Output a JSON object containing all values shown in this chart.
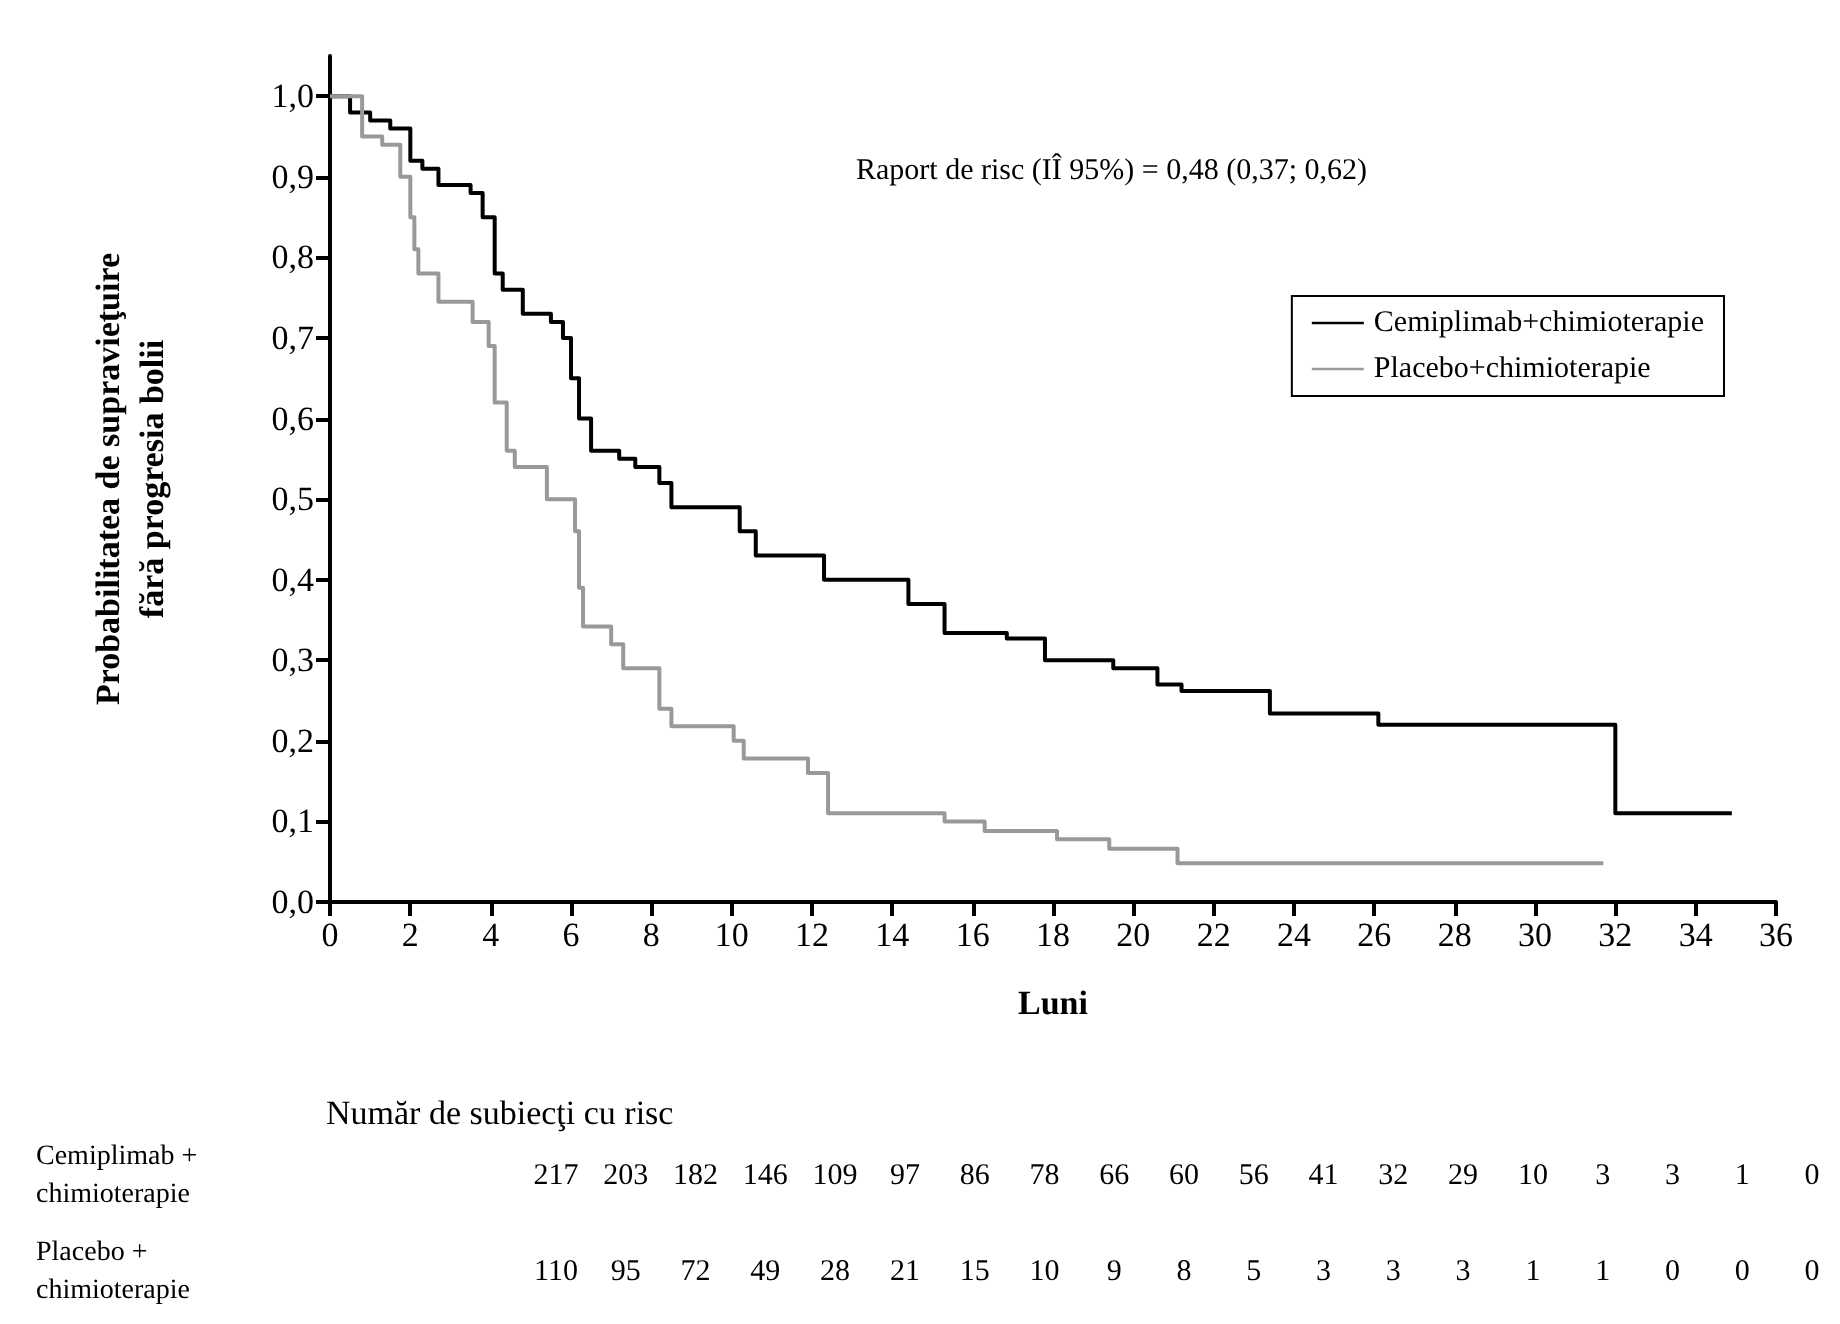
{
  "chart_data": {
    "type": "step",
    "xlabel": "Luni",
    "ylabel": "Probabilitatea de supravieţuire\nfără progresia bolii",
    "xlim": [
      0,
      36
    ],
    "ylim": [
      0,
      1.05
    ],
    "xticks": [
      0,
      2,
      4,
      6,
      8,
      10,
      12,
      14,
      16,
      18,
      20,
      22,
      24,
      26,
      28,
      30,
      32,
      34,
      36
    ],
    "yticks": [
      {
        "value": 0,
        "label": "0,0"
      },
      {
        "value": 0.1,
        "label": "0,1"
      },
      {
        "value": 0.2,
        "label": "0,2"
      },
      {
        "value": 0.3,
        "label": "0,3"
      },
      {
        "value": 0.4,
        "label": "0,4"
      },
      {
        "value": 0.5,
        "label": "0,5"
      },
      {
        "value": 0.6,
        "label": "0,6"
      },
      {
        "value": 0.7,
        "label": "0,7"
      },
      {
        "value": 0.8,
        "label": "0,8"
      },
      {
        "value": 0.9,
        "label": "0,9"
      },
      {
        "value": 1,
        "label": "1,0"
      }
    ],
    "grid": false,
    "legend": "top right",
    "series": [
      {
        "name": "Cemiplimab+chimioterapie",
        "color": "#000000",
        "x": [
          0,
          0.5,
          1,
          1.5,
          2,
          2.3,
          2.7,
          3.5,
          3.8,
          4.1,
          4.3,
          4.8,
          5.5,
          5.8,
          6,
          6.2,
          6.5,
          7.2,
          7.6,
          8.2,
          8.5,
          10.2,
          10.6,
          12.3,
          14.4,
          15.3,
          16.85,
          17.8,
          19.5,
          20.6,
          21.2,
          23.4,
          26.1,
          32,
          34.9
        ],
        "values": [
          1,
          0.98,
          0.97,
          0.96,
          0.92,
          0.91,
          0.89,
          0.88,
          0.85,
          0.78,
          0.76,
          0.73,
          0.72,
          0.7,
          0.65,
          0.6,
          0.56,
          0.55,
          0.54,
          0.52,
          0.49,
          0.46,
          0.43,
          0.4,
          0.37,
          0.334,
          0.327,
          0.3,
          0.29,
          0.27,
          0.262,
          0.234,
          0.22,
          0.11,
          0.11
        ]
      },
      {
        "name": "Placebo+chimioterapie",
        "color": "#999999",
        "x": [
          0,
          0.8,
          1.3,
          1.75,
          2,
          2.1,
          2.2,
          2.7,
          3.55,
          3.95,
          4.1,
          4.4,
          4.6,
          5.4,
          6.1,
          6.2,
          6.3,
          7,
          7.3,
          8.2,
          8.5,
          10.05,
          10.3,
          11.9,
          12.4,
          15.3,
          16.3,
          18.1,
          19.4,
          21.1,
          31.7
        ],
        "values": [
          1,
          0.95,
          0.94,
          0.9,
          0.85,
          0.81,
          0.78,
          0.745,
          0.72,
          0.69,
          0.62,
          0.56,
          0.54,
          0.5,
          0.46,
          0.39,
          0.342,
          0.32,
          0.29,
          0.24,
          0.218,
          0.2,
          0.178,
          0.16,
          0.11,
          0.1,
          0.088,
          0.078,
          0.066,
          0.048,
          0.048
        ]
      }
    ],
    "annotations": [
      "Raport de risc (IÎ 95%) = 0,48 (0,37; 0,62)",
      "Număr de subiecţi cu risc",
      "Cemiplimab +\nchimioterapie",
      "217 203 182 146 109 97 86 78 66 60 56 41 32 29 10 3 3 1 0",
      "Placebo +\nchimioterapie",
      "110 95 72 49 28 21 15 10 9 8 5 3 3 3 1 1 0 0 0"
    ]
  }
}
